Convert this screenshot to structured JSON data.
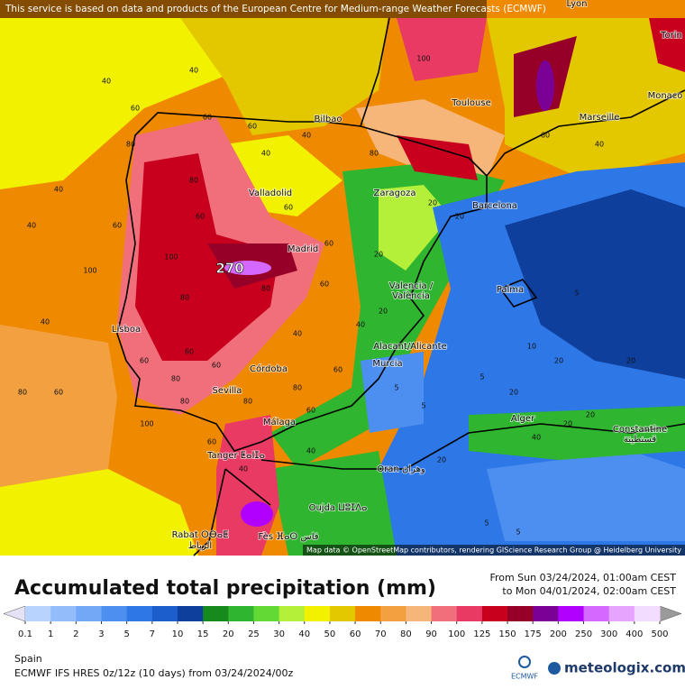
{
  "banner": "This service is based on data and products of the European Centre for Medium-range Weather Forecasts (ECMWF)",
  "attribution": "Map data © OpenStreetMap contributors, rendering GIScience Research Group @ Heidelberg University",
  "max_label": "270",
  "cities": [
    "Lyon",
    "Torin",
    "Monaco",
    "Toulouse",
    "Marseille",
    "Bilbao",
    "Valladolid",
    "Zaragoza",
    "Barcelona",
    "Madrid",
    "Valencia /",
    "València",
    "Palma",
    "Lisboa",
    "Alacant/Alicante",
    "Murcia",
    "Córdoba",
    "Sevilla",
    "Málaga",
    "Alger",
    "Constantine",
    "قسنطينة",
    "Tanger ⵟⴰⵏⵊⴰ",
    "Oran وهران",
    "Oujda ⵡⵓⵊⴷⴰ",
    "Rabat ⵔⴱⴰⵟ",
    "الرباط",
    "Fès ⴼⴰⵙ فاس"
  ],
  "contour_labels": [
    40,
    40,
    60,
    60,
    80,
    40,
    60,
    40,
    40,
    80,
    60,
    40,
    60,
    80,
    60,
    100,
    100,
    100,
    80,
    80,
    60,
    40,
    40,
    60,
    40,
    60,
    80,
    100,
    80,
    60,
    60,
    80,
    80,
    60,
    60,
    40,
    60,
    40,
    20,
    20,
    20,
    20,
    5,
    5,
    10,
    20,
    20,
    5,
    5,
    20,
    20,
    20,
    20,
    5,
    5,
    40,
    60,
    60,
    80,
    40
  ],
  "legend": {
    "title": "Accumulated total precipitation (mm)",
    "from": "From Sun 03/24/2024, 01:00am CEST",
    "to": "to Mon 04/01/2024, 02:00am CEST",
    "ticks": [
      0.1,
      1,
      2,
      3,
      5,
      7,
      10,
      15,
      20,
      25,
      30,
      40,
      50,
      60,
      70,
      80,
      90,
      100,
      125,
      150,
      175,
      200,
      250,
      300,
      400,
      500
    ],
    "colors": [
      "#b9d3ff",
      "#93bdfa",
      "#72a8f5",
      "#4d8ff0",
      "#2d77e6",
      "#1c5ecc",
      "#0f3f9c",
      "#178a1e",
      "#2fb52f",
      "#63d936",
      "#b4ef3a",
      "#f2f200",
      "#e3c800",
      "#ef8a00",
      "#f2a040",
      "#f6b67a",
      "#f06f7a",
      "#e83a62",
      "#c8001e",
      "#960028",
      "#7a0096",
      "#b200ff",
      "#d468ff",
      "#e6a4ff",
      "#f2dcff"
    ],
    "below_color": "#e4e2f4",
    "above_color": "#9a9a9a"
  },
  "footer": {
    "region": "Spain",
    "model": "ECMWF IFS HRES 0z/12z (10 days) from  03/24/2024/00z",
    "ecmwf": "ECMWF",
    "brand": "meteologix.com"
  }
}
